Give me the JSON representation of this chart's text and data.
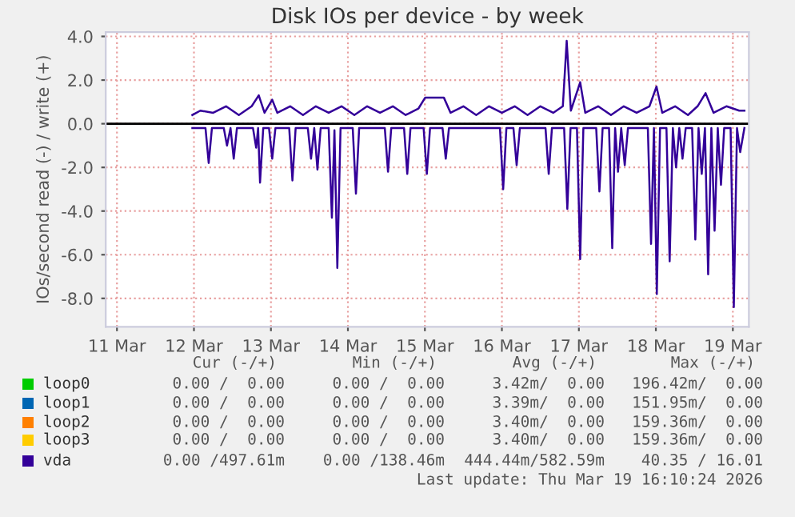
{
  "chart_data": {
    "type": "line",
    "title": "Disk IOs per device - by week",
    "ylabel": "IOs/second read (-) / write (+)",
    "xlim": [
      "2026-03-10T20:30",
      "2026-03-19T05:00"
    ],
    "xticks": [
      {
        "value": "2026-03-11",
        "label": "11 Mar"
      },
      {
        "value": "2026-03-12",
        "label": "12 Mar"
      },
      {
        "value": "2026-03-13",
        "label": "13 Mar"
      },
      {
        "value": "2026-03-14",
        "label": "14 Mar"
      },
      {
        "value": "2026-03-15",
        "label": "15 Mar"
      },
      {
        "value": "2026-03-16",
        "label": "16 Mar"
      },
      {
        "value": "2026-03-17",
        "label": "17 Mar"
      },
      {
        "value": "2026-03-18",
        "label": "18 Mar"
      },
      {
        "value": "2026-03-19",
        "label": "19 Mar"
      }
    ],
    "ylim": [
      -9.3,
      4.2
    ],
    "yticks": [
      {
        "value": -8,
        "label": "-8.0"
      },
      {
        "value": -6,
        "label": "-6.0"
      },
      {
        "value": -4,
        "label": "-4.0"
      },
      {
        "value": -2,
        "label": "-2.0"
      },
      {
        "value": 0,
        "label": "0.0"
      },
      {
        "value": 2,
        "label": "2.0"
      },
      {
        "value": 4,
        "label": "4.0"
      }
    ],
    "grid": true,
    "legend": "bottom",
    "ref_lines": [
      {
        "axis": "y",
        "value": 0,
        "color": "#000000"
      }
    ],
    "series": [
      {
        "name": "loop0",
        "color": "#00cc00"
      },
      {
        "name": "loop1",
        "color": "#0066b3"
      },
      {
        "name": "loop2",
        "color": "#ff8000"
      },
      {
        "name": "loop3",
        "color": "#ffcc00"
      },
      {
        "name": "vda",
        "color": "#330099",
        "x": [
          "2026-03-11T23:30",
          "2026-03-12T02:00",
          "2026-03-12T06:00",
          "2026-03-12T10:00",
          "2026-03-12T14:00",
          "2026-03-12T18:00",
          "2026-03-12T20:12",
          "2026-03-12T22:00",
          "2026-03-13T00:24",
          "2026-03-13T02:00",
          "2026-03-13T06:00",
          "2026-03-13T10:00",
          "2026-03-13T14:00",
          "2026-03-13T18:00",
          "2026-03-13T22:00",
          "2026-03-14T02:00",
          "2026-03-14T06:00",
          "2026-03-14T10:00",
          "2026-03-14T14:00",
          "2026-03-14T18:00",
          "2026-03-14T22:00",
          "2026-03-15T00:06",
          "2026-03-15T05:54",
          "2026-03-15T08:00",
          "2026-03-15T12:00",
          "2026-03-15T16:00",
          "2026-03-15T20:00",
          "2026-03-16T00:00",
          "2026-03-16T04:00",
          "2026-03-16T08:00",
          "2026-03-16T12:00",
          "2026-03-16T16:00",
          "2026-03-16T19:00",
          "2026-03-16T20:12",
          "2026-03-16T21:30",
          "2026-03-17T00:24",
          "2026-03-17T02:00",
          "2026-03-17T06:00",
          "2026-03-17T10:00",
          "2026-03-17T14:00",
          "2026-03-17T18:00",
          "2026-03-17T22:00",
          "2026-03-18T00:12",
          "2026-03-18T02:00",
          "2026-03-18T06:00",
          "2026-03-18T10:00",
          "2026-03-18T13:00",
          "2026-03-18T15:30",
          "2026-03-18T18:00",
          "2026-03-18T22:00",
          "2026-03-19T02:00",
          "2026-03-19T03:36"
        ],
        "values": [
          0.4,
          0.6,
          0.5,
          0.8,
          0.4,
          0.8,
          1.3,
          0.5,
          1.1,
          0.5,
          0.8,
          0.4,
          0.8,
          0.5,
          0.8,
          0.4,
          0.8,
          0.5,
          0.8,
          0.4,
          0.7,
          1.2,
          1.2,
          0.5,
          0.8,
          0.4,
          0.8,
          0.5,
          0.8,
          0.4,
          0.8,
          0.5,
          0.8,
          3.8,
          0.6,
          1.9,
          0.5,
          0.8,
          0.4,
          0.8,
          0.5,
          0.8,
          1.7,
          0.5,
          0.8,
          0.4,
          0.8,
          1.4,
          0.5,
          0.8,
          0.6,
          0.6
        ]
      },
      {
        "color": "#330099",
        "x": [
          "2026-03-11T23:30",
          "2026-03-12T03:36",
          "2026-03-12T04:36",
          "2026-03-12T05:36",
          "2026-03-12T09:18",
          "2026-03-12T10:18",
          "2026-03-12T11:24",
          "2026-03-12T12:24",
          "2026-03-12T13:24",
          "2026-03-12T18:24",
          "2026-03-12T19:24",
          "2026-03-12T20:00",
          "2026-03-12T20:36",
          "2026-03-12T21:36",
          "2026-03-12T23:24",
          "2026-03-13T00:24",
          "2026-03-13T01:24",
          "2026-03-13T05:42",
          "2026-03-13T06:42",
          "2026-03-13T07:42",
          "2026-03-13T11:30",
          "2026-03-13T12:30",
          "2026-03-13T13:30",
          "2026-03-13T14:30",
          "2026-03-13T15:30",
          "2026-03-13T18:00",
          "2026-03-13T19:00",
          "2026-03-13T19:48",
          "2026-03-13T20:42",
          "2026-03-13T21:42",
          "2026-03-14T01:30",
          "2026-03-14T02:30",
          "2026-03-14T03:30",
          "2026-03-14T11:30",
          "2026-03-14T12:30",
          "2026-03-14T13:30",
          "2026-03-14T17:30",
          "2026-03-14T18:30",
          "2026-03-14T19:30",
          "2026-03-14T23:36",
          "2026-03-15T00:36",
          "2026-03-15T01:36",
          "2026-03-15T05:30",
          "2026-03-15T06:30",
          "2026-03-15T07:30",
          "2026-03-15T23:24",
          "2026-03-16T00:24",
          "2026-03-16T01:24",
          "2026-03-16T03:36",
          "2026-03-16T04:36",
          "2026-03-16T05:36",
          "2026-03-16T13:36",
          "2026-03-16T14:36",
          "2026-03-16T15:36",
          "2026-03-16T19:24",
          "2026-03-16T20:24",
          "2026-03-16T21:24",
          "2026-03-16T23:24",
          "2026-03-17T00:24",
          "2026-03-17T01:24",
          "2026-03-17T05:24",
          "2026-03-17T06:24",
          "2026-03-17T07:24",
          "2026-03-17T09:24",
          "2026-03-17T10:24",
          "2026-03-17T11:18",
          "2026-03-17T12:12",
          "2026-03-17T13:12",
          "2026-03-17T14:18",
          "2026-03-17T15:18",
          "2026-03-17T21:30",
          "2026-03-17T22:30",
          "2026-03-17T23:24",
          "2026-03-18T00:18",
          "2026-03-18T01:18",
          "2026-03-18T03:18",
          "2026-03-18T04:18",
          "2026-03-18T05:18",
          "2026-03-18T06:18",
          "2026-03-18T07:18",
          "2026-03-18T08:18",
          "2026-03-18T09:18",
          "2026-03-18T11:18",
          "2026-03-18T12:18",
          "2026-03-18T13:18",
          "2026-03-18T14:18",
          "2026-03-18T15:18",
          "2026-03-18T16:18",
          "2026-03-18T17:18",
          "2026-03-18T18:18",
          "2026-03-18T19:18",
          "2026-03-18T20:18",
          "2026-03-18T21:18",
          "2026-03-18T23:18",
          "2026-03-19T00:18",
          "2026-03-19T01:18",
          "2026-03-19T02:18",
          "2026-03-19T03:36"
        ],
        "values": [
          -0.2,
          -0.2,
          -1.8,
          -0.2,
          -0.2,
          -1.0,
          -0.2,
          -1.6,
          -0.2,
          -0.2,
          -1.1,
          -0.2,
          -2.7,
          -0.2,
          -0.2,
          -1.6,
          -0.2,
          -0.2,
          -2.6,
          -0.2,
          -0.2,
          -1.6,
          -0.2,
          -2.1,
          -0.2,
          -0.2,
          -4.3,
          -0.3,
          -6.6,
          -0.2,
          -0.2,
          -3.2,
          -0.2,
          -0.2,
          -2.2,
          -0.2,
          -0.2,
          -2.3,
          -0.2,
          -0.2,
          -2.3,
          -0.2,
          -0.2,
          -1.6,
          -0.2,
          -0.2,
          -3.0,
          -0.2,
          -0.2,
          -1.9,
          -0.2,
          -0.2,
          -2.3,
          -0.2,
          -0.2,
          -3.9,
          -0.2,
          -0.2,
          -6.2,
          -0.2,
          -0.2,
          -3.1,
          -0.2,
          -0.2,
          -5.7,
          -0.2,
          -2.2,
          -0.2,
          -1.9,
          -0.2,
          -0.2,
          -5.5,
          -0.2,
          -7.8,
          -0.2,
          -0.2,
          -6.3,
          -0.2,
          -2.0,
          -0.2,
          -1.6,
          -0.2,
          -0.2,
          -5.3,
          -0.2,
          -2.3,
          -0.2,
          -6.9,
          -0.2,
          -4.9,
          -0.2,
          -2.8,
          -0.2,
          -0.2,
          -8.4,
          -0.2,
          -1.3,
          -0.2
        ]
      }
    ],
    "annotations": [
      "Cur (-/+)",
      "Min (-/+)",
      "Avg (-/+)",
      "Max (-/+)",
      "0.00 /  0.00",
      "0.00 /  0.00",
      "3.42m/  0.00",
      "196.42m/  0.00",
      "0.00 /  0.00",
      "0.00 /  0.00",
      "3.39m/  0.00",
      "151.95m/  0.00",
      "0.00 /  0.00",
      "0.00 /  0.00",
      "3.40m/  0.00",
      "159.36m/  0.00",
      "0.00 /  0.00",
      "0.00 /  0.00",
      "3.40m/  0.00",
      "159.36m/  0.00",
      "0.00 /497.61m",
      "0.00 /138.46m",
      "444.44m/582.59m",
      "40.35 / 16.01",
      "Last update: Thu Mar 19 16:10:24 2026"
    ]
  }
}
